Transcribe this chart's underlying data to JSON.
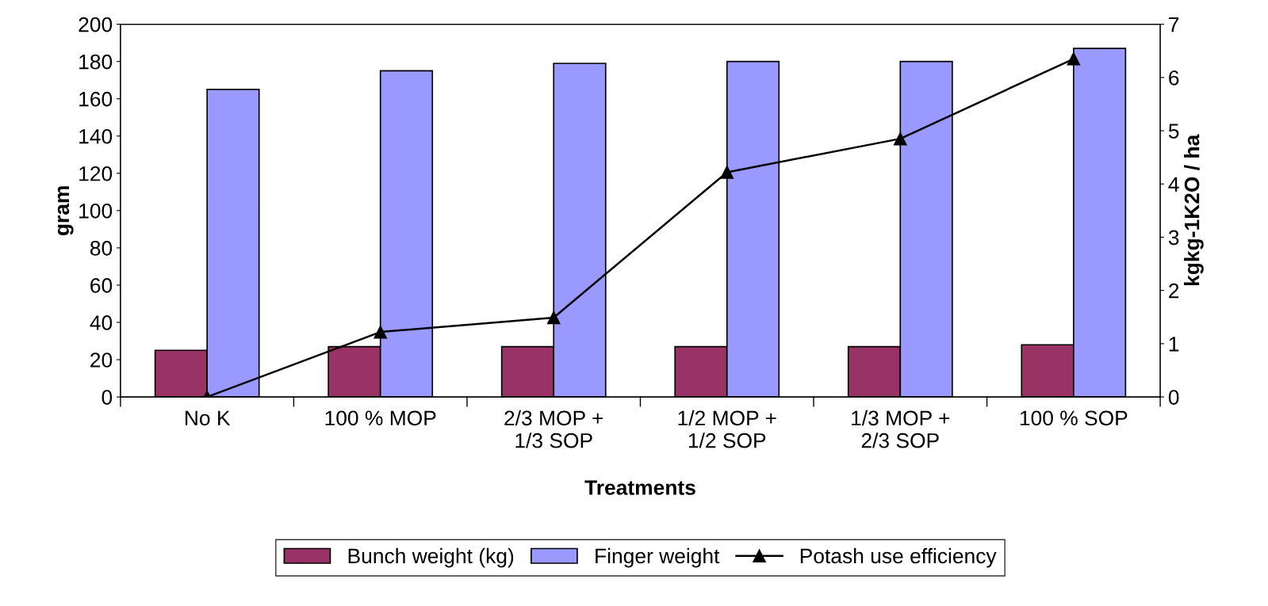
{
  "chart_data": {
    "type": "bar",
    "xlabel": "Treatments",
    "ylabel": "gram",
    "y2label": "kgkg-1K2O / ha",
    "categories": [
      "No K",
      "100 % MOP",
      "2/3 MOP +\n1/3 SOP",
      "1/2 MOP +\n1/2 SOP",
      "1/3 MOP +\n2/3 SOP",
      "100 % SOP"
    ],
    "series": [
      {
        "name": "Bunch weight (kg)",
        "color": "#993366",
        "values": [
          25,
          27,
          27,
          27,
          27,
          28
        ]
      },
      {
        "name": "Finger weight",
        "color": "#9999ff",
        "values": [
          165,
          175,
          179,
          180,
          180,
          187
        ]
      },
      {
        "name": "Potash use efficiency",
        "type": "line",
        "axis": "y2",
        "color": "#000000",
        "marker": "triangle",
        "values": [
          0,
          1.22,
          1.49,
          4.22,
          4.85,
          6.35
        ]
      }
    ],
    "ylim": [
      0,
      200
    ],
    "yticks": [
      0,
      20,
      40,
      60,
      80,
      100,
      120,
      140,
      160,
      180,
      200
    ],
    "y2lim": [
      0,
      7
    ],
    "y2ticks": [
      0,
      1,
      2,
      3,
      4,
      5,
      6,
      7
    ],
    "grid": false,
    "legend": "bottom"
  }
}
